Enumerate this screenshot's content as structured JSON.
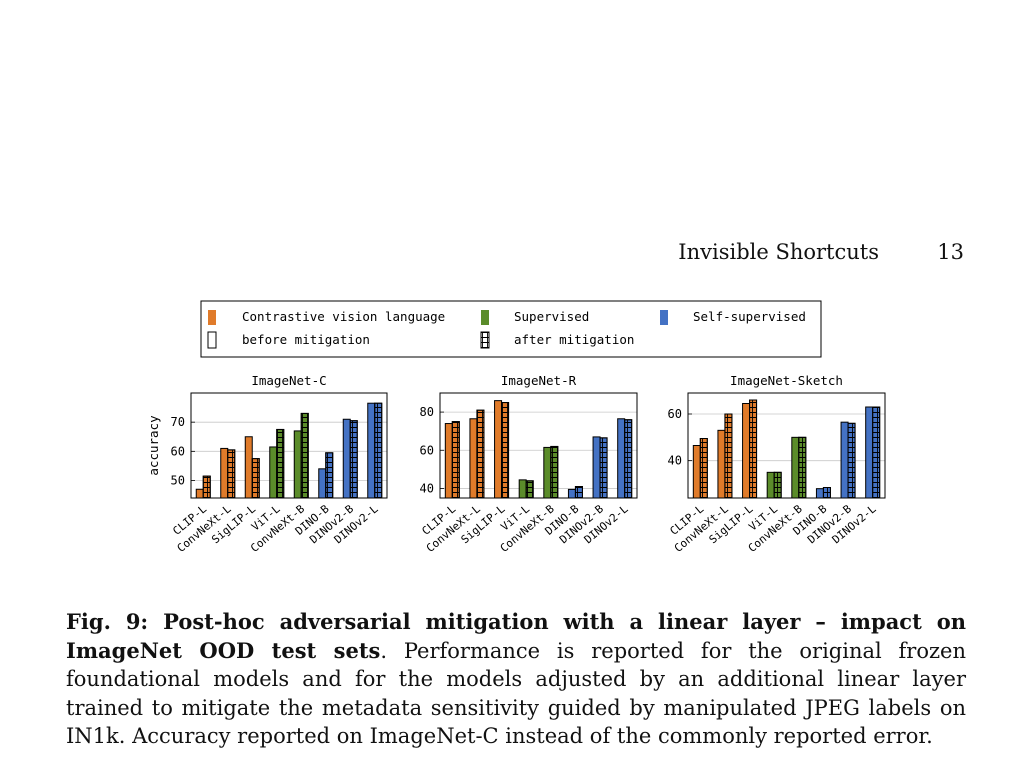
{
  "header": {
    "running_title": "Invisible Shortcuts",
    "page_number": "13"
  },
  "legend": {
    "items": [
      {
        "label": "Contrastive vision language",
        "color": "#E07B2A"
      },
      {
        "label": "Supervised",
        "color": "#5B8C2A"
      },
      {
        "label": "Self-supervised",
        "color": "#4472C4"
      },
      {
        "label": "before mitigation"
      },
      {
        "label": "after mitigation"
      }
    ]
  },
  "colors": {
    "Contrastive vision language": "#E07B2A",
    "Supervised": "#5B8C2A",
    "Self-supervised": "#4472C4"
  },
  "chart_data": [
    {
      "type": "bar",
      "title": "ImageNet-C",
      "ylabel": "accuracy",
      "ylim": [
        44,
        80
      ],
      "yticks": [
        50,
        60,
        70
      ],
      "grid": true,
      "categories": [
        "CLIP-L",
        "ConvNeXt-L",
        "SigLIP-L",
        "ViT-L",
        "ConvNeXt-B",
        "DINO-B",
        "DINOv2-B",
        "DINOv2-L"
      ],
      "groups": [
        "Contrastive vision language",
        "Contrastive vision language",
        "Contrastive vision language",
        "Supervised",
        "Supervised",
        "Self-supervised",
        "Self-supervised",
        "Self-supervised"
      ],
      "series": [
        {
          "name": "before mitigation",
          "values": [
            47,
            61,
            65,
            61.5,
            67,
            54,
            71,
            76.5
          ]
        },
        {
          "name": "after mitigation",
          "values": [
            51.5,
            60.5,
            57.5,
            67.5,
            73,
            59.5,
            70.5,
            76.5
          ]
        }
      ]
    },
    {
      "type": "bar",
      "title": "ImageNet-R",
      "ylabel": "",
      "ylim": [
        35,
        90
      ],
      "yticks": [
        40,
        60,
        80
      ],
      "grid": true,
      "categories": [
        "CLIP-L",
        "ConvNeXt-L",
        "SigLIP-L",
        "ViT-L",
        "ConvNeXt-B",
        "DINO-B",
        "DINOv2-B",
        "DINOv2-L"
      ],
      "groups": [
        "Contrastive vision language",
        "Contrastive vision language",
        "Contrastive vision language",
        "Supervised",
        "Supervised",
        "Self-supervised",
        "Self-supervised",
        "Self-supervised"
      ],
      "series": [
        {
          "name": "before mitigation",
          "values": [
            74,
            76.5,
            86,
            44.5,
            61.5,
            39.5,
            67,
            76.5
          ]
        },
        {
          "name": "after mitigation",
          "values": [
            75,
            81,
            85,
            44,
            62,
            41,
            66.5,
            76
          ]
        }
      ]
    },
    {
      "type": "bar",
      "title": "ImageNet-Sketch",
      "ylabel": "",
      "ylim": [
        24,
        69
      ],
      "yticks": [
        40,
        60
      ],
      "grid": true,
      "categories": [
        "CLIP-L",
        "ConvNeXt-L",
        "SigLIP-L",
        "ViT-L",
        "ConvNeXt-B",
        "DINO-B",
        "DINOv2-B",
        "DINOv2-L"
      ],
      "groups": [
        "Contrastive vision language",
        "Contrastive vision language",
        "Contrastive vision language",
        "Supervised",
        "Supervised",
        "Self-supervised",
        "Self-supervised",
        "Self-supervised"
      ],
      "series": [
        {
          "name": "before mitigation",
          "values": [
            46.5,
            53,
            64.5,
            35,
            50,
            28,
            56.5,
            63
          ]
        },
        {
          "name": "after mitigation",
          "values": [
            49.5,
            60,
            66,
            35,
            50,
            28.5,
            56,
            63
          ]
        }
      ]
    }
  ],
  "caption": {
    "lead": "Fig. 9: Post-hoc adversarial mitigation with a linear layer – impact on ImageNet OOD test sets",
    "body": ". Performance is reported for the original frozen foundational models and for the models adjusted by an additional linear layer trained to mitigate the metadata sensitivity guided by manipulated JPEG labels on IN1k. Accuracy reported on ImageNet-C instead of the commonly reported error."
  }
}
